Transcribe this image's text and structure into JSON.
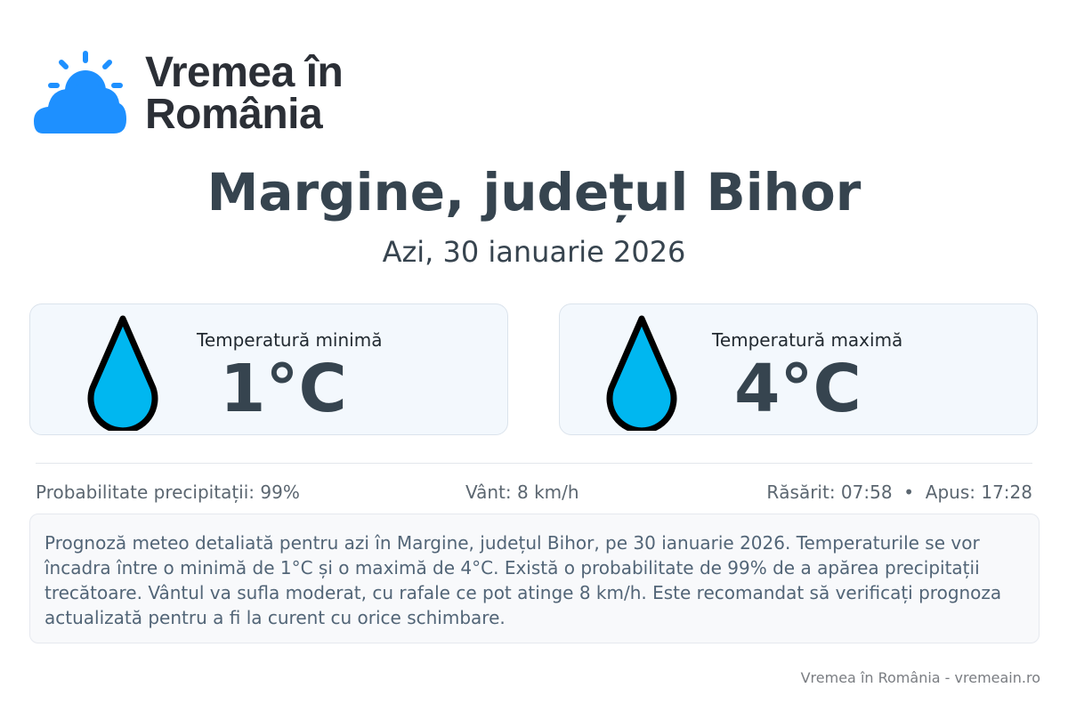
{
  "brand": {
    "line1": "Vremea în",
    "line2": "România",
    "logo_icon": "sun-behind-cloud-icon",
    "logo_color": "#1e90ff"
  },
  "header": {
    "title": "Margine, județul Bihor",
    "date": "Azi, 30 ianuarie 2026"
  },
  "cards": [
    {
      "label": "Temperatură minimă",
      "value": "1°C",
      "icon": "water-drop-icon"
    },
    {
      "label": "Temperatură maximă",
      "value": "4°C",
      "icon": "water-drop-icon"
    }
  ],
  "drop_color": "#00b7f0",
  "stats": {
    "precip": "Probabilitate precipitații: 99%",
    "wind": "Vânt: 8 km/h",
    "sun": "Răsărit: 07:58  •  Apus: 17:28"
  },
  "description": "Prognoză meteo detaliată pentru azi în Margine, județul Bihor, pe 30 ianuarie 2026. Temperaturile se vor încadra între o minimă de 1°C și o maximă de 4°C. Există o probabilitate de 99% de a apărea precipitații trecătoare. Vântul va sufla moderat, cu rafale ce pot atinge 8 km/h. Este recomandat să verificați prognoza actualizată pentru a fi la curent cu orice schimbare.",
  "footer": "Vremea în România - vremeain.ro"
}
